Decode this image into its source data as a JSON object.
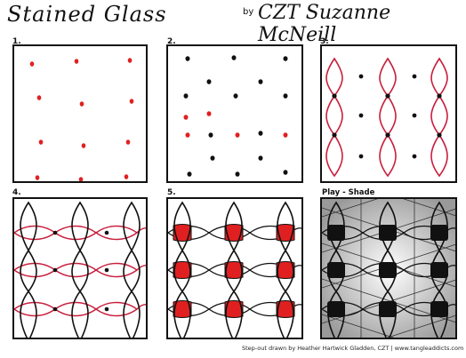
{
  "header": {
    "title": "Stained Glass",
    "by": "by",
    "author": "CZT Suzanne McNeill"
  },
  "steps": [
    {
      "number": "1."
    },
    {
      "number": "2."
    },
    {
      "number": "3."
    },
    {
      "number": "4."
    },
    {
      "number": "5."
    },
    {
      "number": "Play - Shade"
    }
  ],
  "footer": "Step-out drawn by Heather Hartwick Gladden, CZT | www.tangleaddicts.com",
  "colors": {
    "ink": "#111111",
    "red": "#e02020",
    "shade": "#bbbbbb"
  }
}
